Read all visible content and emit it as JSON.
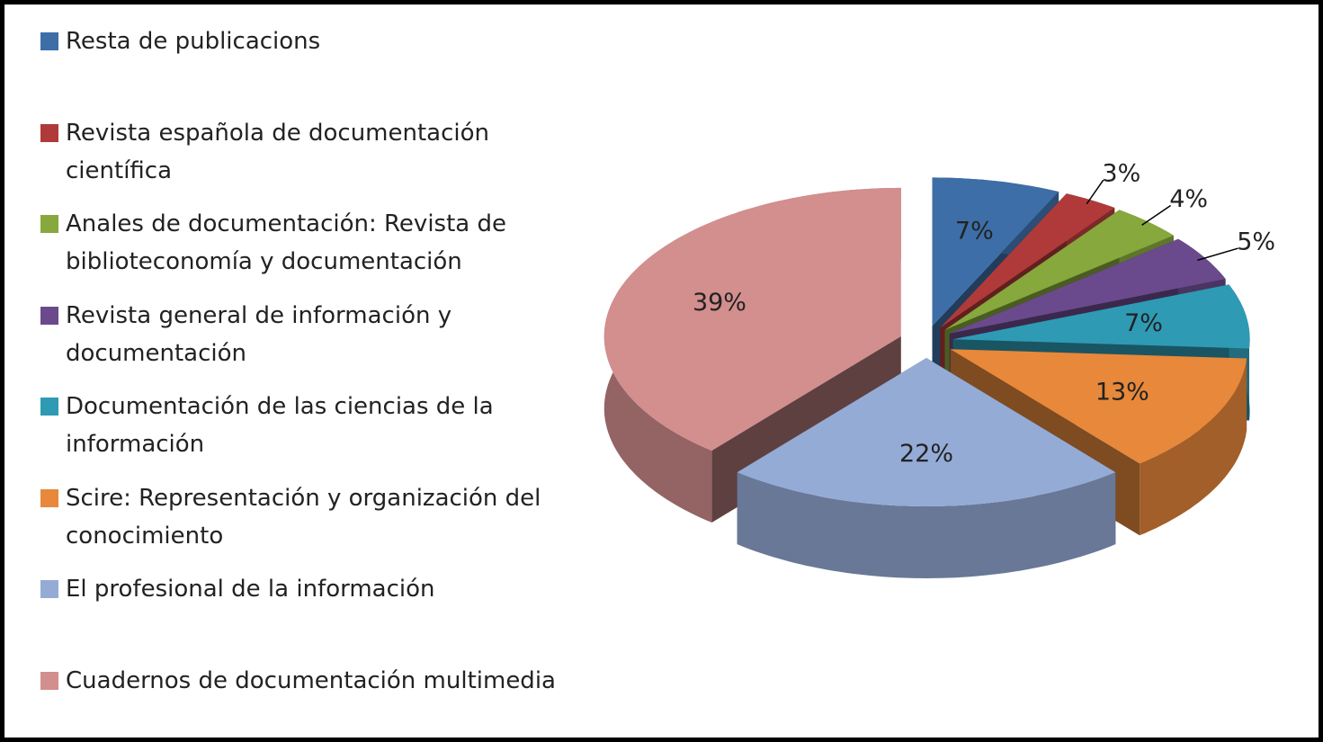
{
  "chart_data": {
    "type": "pie",
    "categories": [
      "Resta de publicacions",
      "Revista española de documentación científica",
      "Anales de documentación: Revista de biblioteconomía y documentación",
      "Revista general de información y documentación",
      "Documentación de las ciencias de la información",
      "Scire: Representación y organización del conocimiento",
      "El profesional de la información",
      "Cuadernos de documentación multimedia"
    ],
    "values": [
      7,
      3,
      4,
      5,
      7,
      13,
      22,
      39
    ],
    "value_labels": [
      "7%",
      "3%",
      "4%",
      "5%",
      "7%",
      "13%",
      "22%",
      "39%"
    ],
    "colors": [
      "#3d6ea8",
      "#b03a3a",
      "#86a83c",
      "#6a4a8c",
      "#2f9ab4",
      "#e7883a",
      "#94abd6",
      "#d38e8e"
    ],
    "legend": "left"
  }
}
